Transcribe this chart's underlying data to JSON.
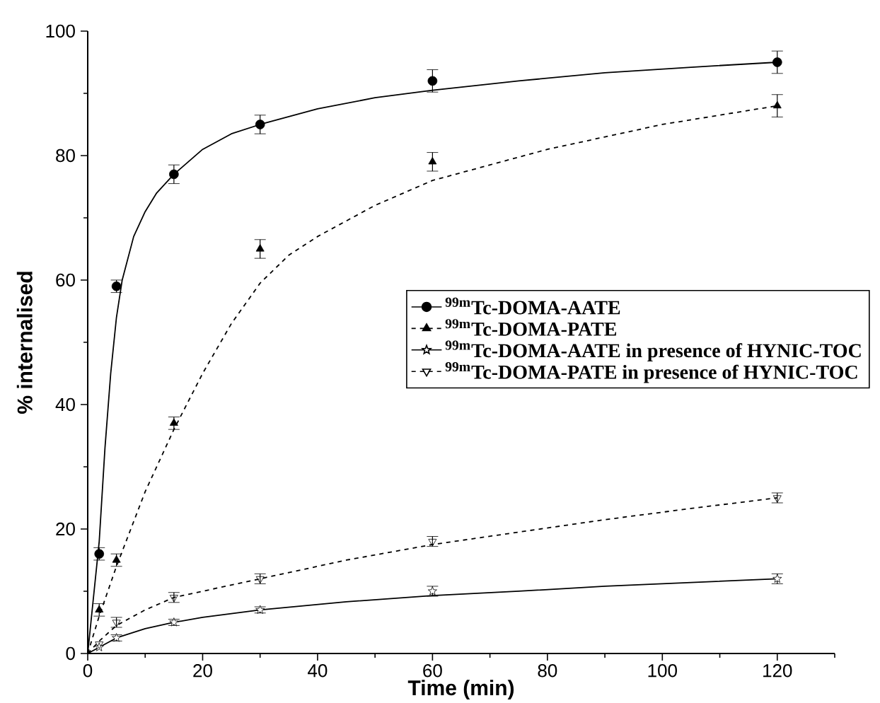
{
  "chart_data": {
    "type": "scatter",
    "xlabel": "Time (min)",
    "ylabel": "% internalised",
    "xlim": [
      0,
      130
    ],
    "ylim": [
      0,
      100
    ],
    "xticks": [
      0,
      20,
      40,
      60,
      80,
      100,
      120
    ],
    "yticks": [
      0,
      20,
      40,
      60,
      80,
      100
    ],
    "grid": false,
    "legend": "right",
    "series": [
      {
        "name": "$^{99m}$Tc-DOMA-AATE",
        "color": "#000000",
        "marker": "circle",
        "line_style": "solid",
        "x": [
          2,
          5,
          15,
          30,
          60,
          120
        ],
        "values": [
          16,
          59,
          77,
          85,
          92,
          95
        ],
        "errors": [
          1,
          1,
          1.5,
          1.5,
          1.8,
          1.8
        ]
      },
      {
        "name": "$^{99m}$Tc-DOMA-PATE",
        "color": "#000000",
        "marker": "triangle",
        "line_style": "dashed",
        "x": [
          2,
          5,
          15,
          30,
          60,
          120
        ],
        "values": [
          7,
          15,
          37,
          65,
          79,
          88
        ],
        "errors": [
          1,
          1,
          1,
          1.5,
          1.5,
          1.8
        ]
      },
      {
        "name": "$^{99m}$Tc-DOMA-AATE in presence of HYNIC-TOC",
        "color": "#000000",
        "marker": "star",
        "line_style": "solid",
        "x": [
          2,
          5,
          15,
          30,
          60,
          120
        ],
        "values": [
          1,
          2.5,
          5,
          7,
          10,
          12
        ],
        "errors": [
          null,
          0.5,
          0.5,
          0.5,
          0.8,
          0.8
        ]
      },
      {
        "name": "$^{99m}$Tc-DOMA-PATE in presence of HYNIC-TOC",
        "color": "#000000",
        "marker": "triangle-down",
        "line_style": "dashed",
        "x": [
          2,
          5,
          15,
          30,
          60,
          120
        ],
        "values": [
          1.5,
          5,
          9,
          12,
          18,
          25
        ],
        "errors": [
          null,
          0.8,
          0.8,
          0.8,
          0.8,
          0.8
        ]
      },
      {
        "type": "line",
        "color": "#000000",
        "line_style": "solid",
        "x": [
          0,
          1,
          2,
          3,
          4,
          5,
          6,
          8,
          10,
          12,
          15,
          20,
          25,
          30,
          40,
          50,
          60,
          75,
          90,
          105,
          120
        ],
        "values": [
          0,
          9,
          18,
          33,
          45,
          54,
          60,
          67,
          71,
          74,
          77,
          81,
          83.5,
          85,
          87.5,
          89.3,
          90.5,
          92,
          93.3,
          94.2,
          95
        ]
      },
      {
        "type": "line",
        "color": "#000000",
        "line_style": "dashed",
        "x": [
          0,
          2,
          5,
          10,
          15,
          20,
          25,
          30,
          35,
          40,
          50,
          60,
          70,
          80,
          90,
          100,
          110,
          120
        ],
        "values": [
          0,
          6,
          14,
          26,
          36,
          45,
          53,
          59.5,
          64,
          67,
          72,
          76,
          78.5,
          81,
          83,
          85,
          86.5,
          88
        ]
      },
      {
        "type": "line",
        "color": "#000000",
        "line_style": "solid",
        "x": [
          0,
          2,
          5,
          10,
          15,
          20,
          30,
          45,
          60,
          75,
          90,
          105,
          120
        ],
        "values": [
          0,
          1,
          2.5,
          4,
          5,
          5.8,
          7,
          8.3,
          9.3,
          10,
          10.8,
          11.4,
          12
        ]
      },
      {
        "type": "line",
        "color": "#000000",
        "line_style": "dashed",
        "x": [
          0,
          2,
          5,
          10,
          15,
          20,
          30,
          45,
          60,
          75,
          90,
          105,
          120
        ],
        "values": [
          0,
          2,
          4.5,
          7,
          9,
          10,
          12,
          15,
          17.5,
          19.5,
          21.5,
          23.3,
          25
        ]
      }
    ]
  }
}
